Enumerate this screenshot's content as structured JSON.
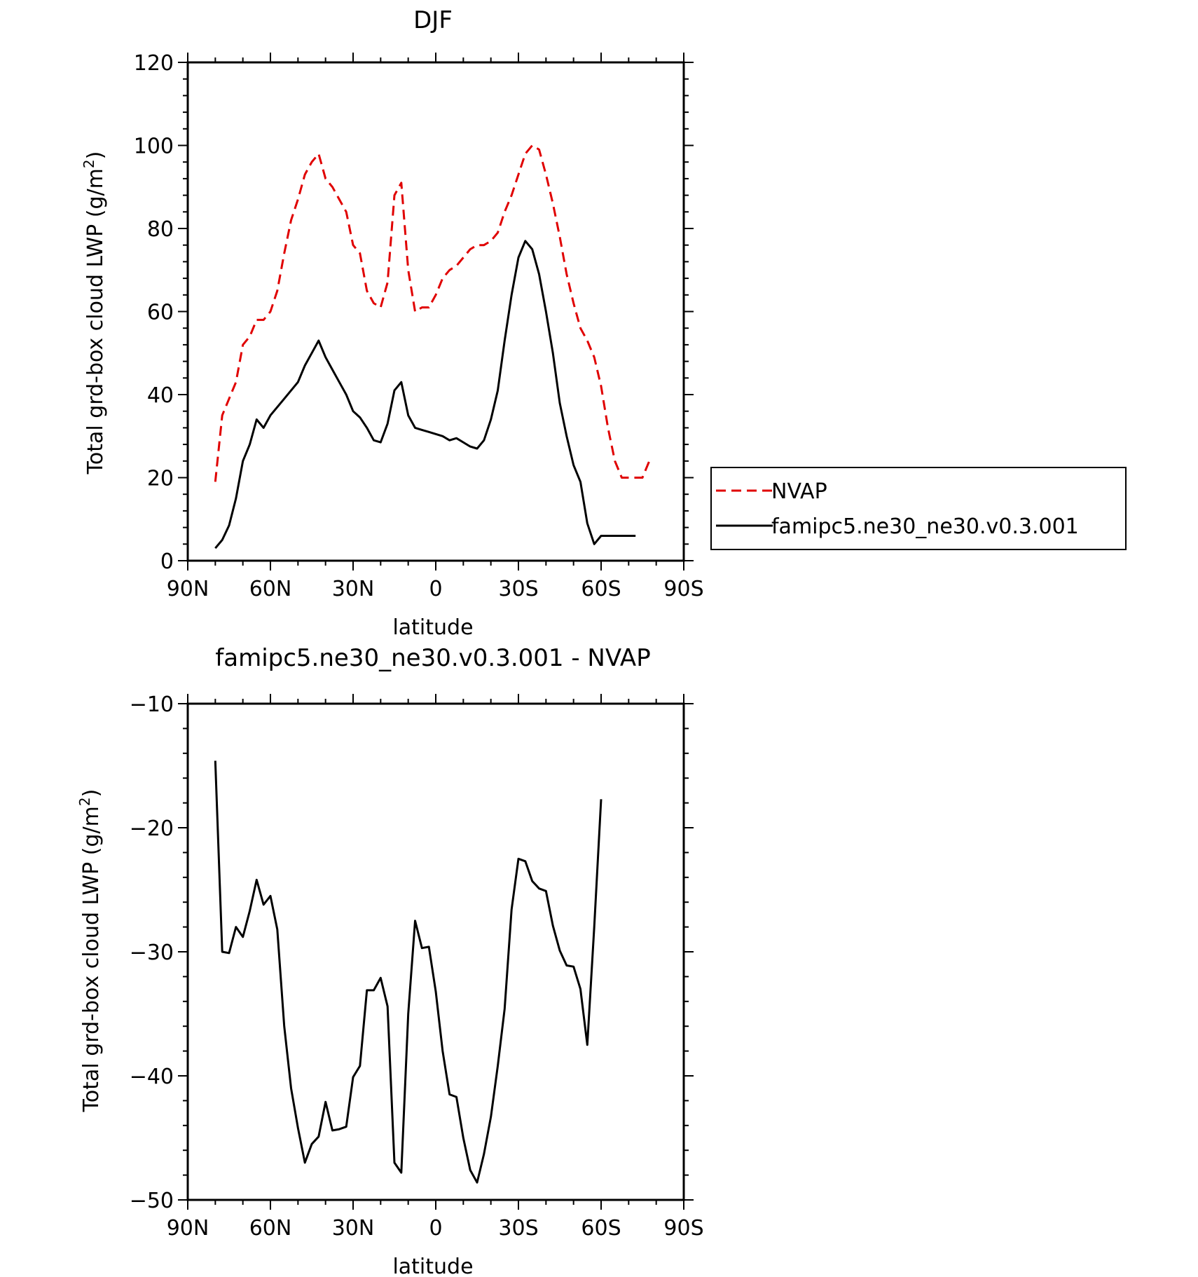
{
  "chart_data": [
    {
      "type": "line",
      "title": "DJF",
      "xlabel": "latitude",
      "ylabel": "Total grd-box cloud LWP (g/m",
      "ylabel_sup": "2",
      "ylabel_close": ")",
      "xlim": [
        90,
        -90
      ],
      "ylim": [
        0,
        120
      ],
      "xticks": [
        {
          "v": 90,
          "label": "90N"
        },
        {
          "v": 60,
          "label": "60N"
        },
        {
          "v": 30,
          "label": "30N"
        },
        {
          "v": 0,
          "label": "0"
        },
        {
          "v": -30,
          "label": "30S"
        },
        {
          "v": -60,
          "label": "60S"
        },
        {
          "v": -90,
          "label": "90S"
        }
      ],
      "yticks": [
        {
          "v": 0,
          "label": "0"
        },
        {
          "v": 20,
          "label": "20"
        },
        {
          "v": 40,
          "label": "40"
        },
        {
          "v": 60,
          "label": "60"
        },
        {
          "v": 80,
          "label": "80"
        },
        {
          "v": 100,
          "label": "100"
        },
        {
          "v": 120,
          "label": "120"
        }
      ],
      "grid": false,
      "legend_position": "outside-right",
      "series": [
        {
          "name": "NVAP",
          "color": "#e00000",
          "dash": "dashed",
          "x": [
            80,
            77.5,
            75,
            72.5,
            70,
            67.5,
            65,
            62.5,
            60,
            57.5,
            55,
            52.5,
            50,
            47.5,
            45,
            42.5,
            40,
            37.5,
            35,
            32.5,
            30,
            27.5,
            25,
            22.5,
            20,
            17.5,
            15,
            12.5,
            10,
            7.5,
            5,
            2.5,
            0,
            -2.5,
            -5,
            -7.5,
            -10,
            -12.5,
            -15,
            -17.5,
            -20,
            -22.5,
            -25,
            -27.5,
            -30,
            -32.5,
            -35,
            -37.5,
            -40,
            -42.5,
            -45,
            -47.5,
            -50,
            -52.5,
            -55,
            -57.5,
            -60,
            -62.5,
            -65,
            -67.5,
            -70,
            -72.5,
            -75,
            -77.5
          ],
          "values": [
            19,
            35,
            39,
            43,
            52,
            54,
            58,
            58,
            60,
            65,
            74,
            82,
            87,
            93,
            96,
            98,
            92,
            90,
            87,
            84,
            76,
            74,
            65,
            62,
            61,
            67,
            88,
            91,
            70,
            60,
            61,
            61,
            64,
            68,
            70,
            71,
            73,
            75,
            76,
            76,
            77,
            79,
            84,
            88,
            93,
            98,
            100,
            99,
            93,
            86,
            78,
            69,
            62,
            56,
            53,
            49,
            42,
            32,
            24,
            20,
            20,
            20,
            20,
            24
          ],
          "n_points": 64
        },
        {
          "name": "famipc5.ne30_ne30.v0.3.001",
          "color": "#000000",
          "dash": "solid",
          "x": [
            80,
            77.5,
            75,
            72.5,
            70,
            67.5,
            65,
            62.5,
            60,
            57.5,
            55,
            52.5,
            50,
            47.5,
            45,
            42.5,
            40,
            37.5,
            35,
            32.5,
            30,
            27.5,
            25,
            22.5,
            20,
            17.5,
            15,
            12.5,
            10,
            7.5,
            5,
            2.5,
            0,
            -2.5,
            -5,
            -7.5,
            -10,
            -12.5,
            -15,
            -17.5,
            -20,
            -22.5,
            -25,
            -27.5,
            -30,
            -32.5,
            -35,
            -37.5,
            -40,
            -42.5,
            -45,
            -47.5,
            -50,
            -52.5,
            -55,
            -57.5,
            -60,
            -62.5,
            -65,
            -67.5,
            -70,
            -72.5,
            -75,
            -77.5
          ],
          "values": [
            3,
            5,
            8.5,
            15,
            24,
            28,
            34,
            32,
            35,
            37,
            39,
            41,
            43,
            47,
            50,
            53,
            49,
            46,
            43,
            40,
            36,
            34.5,
            32,
            29,
            28.5,
            33,
            41,
            43,
            35,
            32,
            31.5,
            31,
            30.5,
            30,
            29,
            29.5,
            28.5,
            27.5,
            27,
            29,
            34,
            41,
            53,
            64,
            73,
            77,
            75,
            69,
            60,
            50,
            38,
            30,
            23,
            19,
            9,
            4,
            6,
            6,
            6,
            6,
            6,
            6,
            6,
            6
          ]
        }
      ]
    },
    {
      "type": "line",
      "title": "famipc5.ne30_ne30.v0.3.001 - NVAP",
      "xlabel": "latitude",
      "ylabel": "Total grd-box cloud LWP (g/m",
      "ylabel_sup": "2",
      "ylabel_close": ")",
      "xlim": [
        90,
        -90
      ],
      "ylim": [
        -50,
        -10
      ],
      "xticks": [
        {
          "v": 90,
          "label": "90N"
        },
        {
          "v": 60,
          "label": "60N"
        },
        {
          "v": 30,
          "label": "30N"
        },
        {
          "v": 0,
          "label": "0"
        },
        {
          "v": -30,
          "label": "30S"
        },
        {
          "v": -60,
          "label": "60S"
        },
        {
          "v": -90,
          "label": "90S"
        }
      ],
      "yticks": [
        {
          "v": -50,
          "label": "−50"
        },
        {
          "v": -40,
          "label": "−40"
        },
        {
          "v": -30,
          "label": "−30"
        },
        {
          "v": -20,
          "label": "−20"
        },
        {
          "v": -10,
          "label": "−10"
        }
      ],
      "grid": false,
      "series": [
        {
          "name": "",
          "color": "#000000",
          "dash": "solid",
          "x": [
            80,
            77.5,
            75,
            72.5,
            70,
            67.5,
            65,
            62.5,
            60,
            57.5,
            55,
            52.5,
            50,
            47.5,
            45,
            42.5,
            40,
            37.5,
            35,
            32.5,
            30,
            27.5,
            25,
            22.5,
            20,
            17.5,
            15,
            12.5,
            10,
            7.5,
            5,
            2.5,
            0,
            -2.5,
            -5,
            -7.5,
            -10,
            -12.5,
            -15,
            -17.5,
            -20,
            -22.5,
            -25,
            -27.5,
            -30,
            -32.5,
            -35,
            -37.5,
            -40,
            -42.5,
            -45,
            -47.5,
            -50,
            -52.5,
            -55,
            -57.5,
            -60,
            -62.5,
            -65,
            -67.5,
            -70,
            -72.5,
            -75,
            -77.5
          ],
          "values": [
            -14.6,
            -30,
            -30.1,
            -28,
            -28.8,
            -26.7,
            -24.2,
            -26.2,
            -25.5,
            -28.2,
            -36,
            -41,
            -44.2,
            -47,
            -45.5,
            -44.9,
            -42.1,
            -44.4,
            -44.3,
            -44.1,
            -40.1,
            -39.2,
            -33.1,
            -33.1,
            -32.1,
            -34.4,
            -47,
            -47.8,
            -35,
            -27.5,
            -29.7,
            -29.6,
            -33.2,
            -38,
            -41.5,
            -41.7,
            -45,
            -47.6,
            -48.6,
            -46.3,
            -43.3,
            -39.2,
            -34.6,
            -26.6,
            -22.5,
            -22.7,
            -24.3,
            -24.9,
            -25.1,
            -27.9,
            -29.9,
            -31.1,
            -31.2,
            -33,
            -37.5,
            -28,
            -17.7,
            -17.7,
            -17.7,
            -17.7,
            -17.7,
            -17.7,
            -17.7,
            -17.7
          ]
        }
      ]
    }
  ]
}
